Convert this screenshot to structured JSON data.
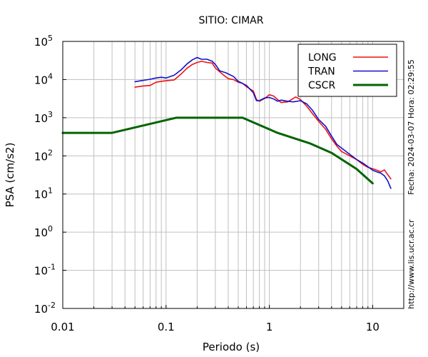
{
  "chart_data": {
    "type": "line",
    "title": "SITIO: CIMAR",
    "xlabel": "Periodo (s)",
    "ylabel": "PSA (cm/s2)",
    "x_scale": "log",
    "y_scale": "log",
    "xlim": [
      0.01,
      20
    ],
    "ylim": [
      0.01,
      100000
    ],
    "x_ticks": [
      {
        "value": 0.01,
        "label": "0.01"
      },
      {
        "value": 0.1,
        "label": "0.1"
      },
      {
        "value": 1,
        "label": "1"
      },
      {
        "value": 10,
        "label": "10"
      }
    ],
    "y_ticks": [
      {
        "value": 0.01,
        "base": "10",
        "exp": "-2"
      },
      {
        "value": 0.1,
        "base": "10",
        "exp": "-1"
      },
      {
        "value": 1,
        "base": "10",
        "exp": "0"
      },
      {
        "value": 10,
        "base": "10",
        "exp": "1"
      },
      {
        "value": 100,
        "base": "10",
        "exp": "2"
      },
      {
        "value": 1000,
        "base": "10",
        "exp": "3"
      },
      {
        "value": 10000,
        "base": "10",
        "exp": "4"
      },
      {
        "value": 100000,
        "base": "10",
        "exp": "5"
      }
    ],
    "grid": true,
    "legend_position": "top-right",
    "side_text": {
      "datetime": "Fecha: 2024-03-07 Hora: 02:29:55",
      "url": "http://www.lis.ucr.ac.cr"
    },
    "series": [
      {
        "name": "LONG",
        "color": "#ee1111",
        "stroke": 1.6,
        "points": [
          [
            0.05,
            6300
          ],
          [
            0.06,
            6800
          ],
          [
            0.07,
            7000
          ],
          [
            0.08,
            8500
          ],
          [
            0.09,
            9000
          ],
          [
            0.1,
            9300
          ],
          [
            0.12,
            9800
          ],
          [
            0.14,
            14000
          ],
          [
            0.16,
            20000
          ],
          [
            0.18,
            25000
          ],
          [
            0.2,
            28000
          ],
          [
            0.22,
            30000
          ],
          [
            0.25,
            28000
          ],
          [
            0.28,
            27000
          ],
          [
            0.3,
            20000
          ],
          [
            0.35,
            14000
          ],
          [
            0.4,
            10500
          ],
          [
            0.45,
            10000
          ],
          [
            0.5,
            8500
          ],
          [
            0.55,
            8000
          ],
          [
            0.6,
            6500
          ],
          [
            0.7,
            5000
          ],
          [
            0.75,
            3000
          ],
          [
            0.8,
            2700
          ],
          [
            0.9,
            3200
          ],
          [
            1.0,
            4000
          ],
          [
            1.1,
            3700
          ],
          [
            1.2,
            3000
          ],
          [
            1.3,
            2500
          ],
          [
            1.5,
            2600
          ],
          [
            1.7,
            3200
          ],
          [
            1.8,
            3500
          ],
          [
            2.0,
            3000
          ],
          [
            2.3,
            2000
          ],
          [
            2.6,
            1300
          ],
          [
            3.0,
            800
          ],
          [
            3.5,
            500
          ],
          [
            4.0,
            280
          ],
          [
            4.5,
            180
          ],
          [
            5.0,
            130
          ],
          [
            6.0,
            100
          ],
          [
            7.0,
            80
          ],
          [
            8.0,
            60
          ],
          [
            9.0,
            50
          ],
          [
            10.0,
            46
          ],
          [
            11.0,
            42
          ],
          [
            12.0,
            38
          ],
          [
            13.0,
            43
          ],
          [
            14.0,
            32
          ],
          [
            15.0,
            25
          ]
        ]
      },
      {
        "name": "TRAN",
        "color": "#1111cc",
        "stroke": 1.6,
        "points": [
          [
            0.05,
            8800
          ],
          [
            0.06,
            9500
          ],
          [
            0.07,
            10200
          ],
          [
            0.08,
            11000
          ],
          [
            0.09,
            11500
          ],
          [
            0.1,
            11000
          ],
          [
            0.12,
            13000
          ],
          [
            0.14,
            18000
          ],
          [
            0.16,
            26000
          ],
          [
            0.18,
            33000
          ],
          [
            0.2,
            38000
          ],
          [
            0.22,
            34000
          ],
          [
            0.25,
            34000
          ],
          [
            0.28,
            30000
          ],
          [
            0.3,
            25000
          ],
          [
            0.33,
            17000
          ],
          [
            0.38,
            15000
          ],
          [
            0.45,
            12000
          ],
          [
            0.5,
            9000
          ],
          [
            0.6,
            7000
          ],
          [
            0.7,
            4500
          ],
          [
            0.75,
            2800
          ],
          [
            0.8,
            2800
          ],
          [
            0.9,
            3300
          ],
          [
            1.0,
            3400
          ],
          [
            1.1,
            3100
          ],
          [
            1.2,
            2700
          ],
          [
            1.3,
            2900
          ],
          [
            1.5,
            2700
          ],
          [
            1.7,
            2600
          ],
          [
            2.0,
            2800
          ],
          [
            2.3,
            2300
          ],
          [
            2.6,
            1600
          ],
          [
            3.0,
            900
          ],
          [
            3.5,
            600
          ],
          [
            4.0,
            330
          ],
          [
            4.5,
            200
          ],
          [
            5.0,
            160
          ],
          [
            6.0,
            110
          ],
          [
            7.0,
            80
          ],
          [
            8.0,
            65
          ],
          [
            9.0,
            52
          ],
          [
            10.0,
            42
          ],
          [
            11.0,
            38
          ],
          [
            12.0,
            35
          ],
          [
            13.0,
            30
          ],
          [
            14.0,
            22
          ],
          [
            15.0,
            14
          ]
        ]
      },
      {
        "name": "CSCR",
        "color": "#006400",
        "stroke": 3,
        "points": [
          [
            0.01,
            400
          ],
          [
            0.03,
            400
          ],
          [
            0.125,
            1000
          ],
          [
            0.55,
            1000
          ],
          [
            1.2,
            400
          ],
          [
            2.5,
            210
          ],
          [
            4.0,
            120
          ],
          [
            7.0,
            45
          ],
          [
            10.0,
            19
          ]
        ]
      }
    ]
  }
}
